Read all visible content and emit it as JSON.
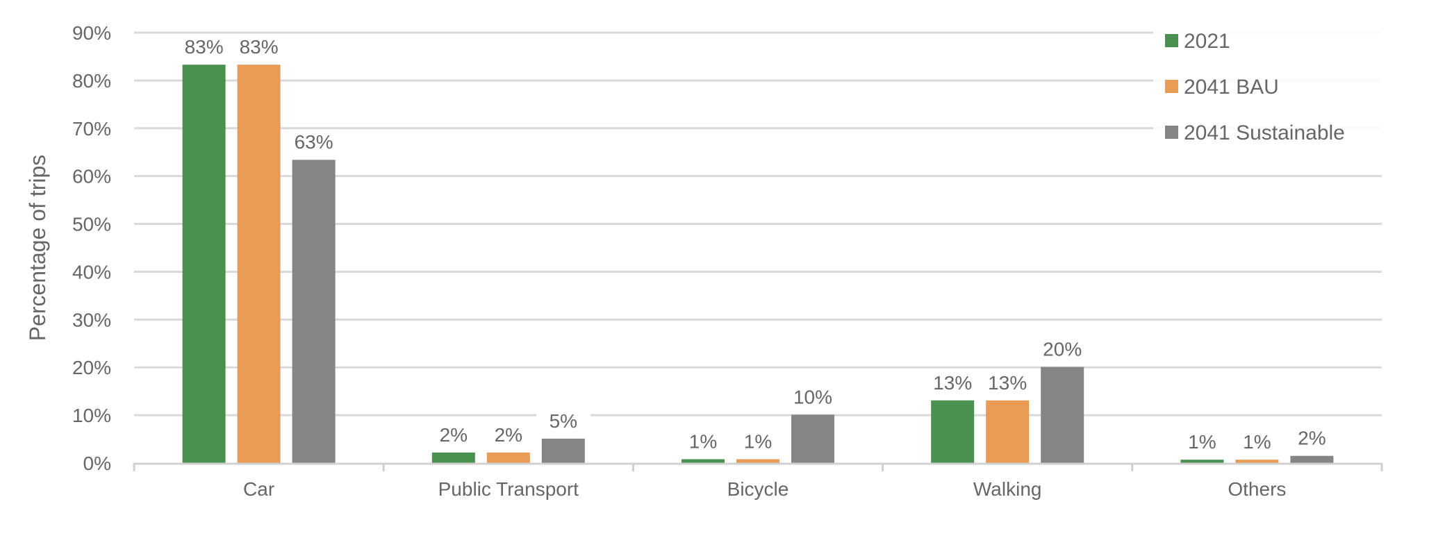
{
  "chart_data": {
    "type": "bar",
    "title": "",
    "xlabel": "",
    "ylabel": "Percentage of trips",
    "ylim": [
      0,
      90
    ],
    "yticks": [
      "0%",
      "10%",
      "20%",
      "30%",
      "40%",
      "50%",
      "60%",
      "70%",
      "80%",
      "90%"
    ],
    "grid": true,
    "legend_position": "top-right",
    "categories": [
      "Car",
      "Public Transport",
      "Bicycle",
      "Walking",
      "Others"
    ],
    "series": [
      {
        "name": "2021",
        "color": "#4a914f",
        "values": [
          83.3,
          2.2,
          0.8,
          13.1,
          0.7
        ],
        "labels": [
          "83%",
          "2%",
          "1%",
          "13%",
          "1%"
        ]
      },
      {
        "name": "2041 BAU",
        "color": "#e89b55",
        "values": [
          83.3,
          2.2,
          0.8,
          13.1,
          0.7
        ],
        "labels": [
          "83%",
          "2%",
          "1%",
          "13%",
          "1%"
        ]
      },
      {
        "name": "2041 Sustainable",
        "color": "#858585",
        "values": [
          63.4,
          5.1,
          10.1,
          20.1,
          1.5
        ],
        "labels": [
          "63%",
          "5%",
          "10%",
          "20%",
          "2%"
        ]
      }
    ]
  }
}
